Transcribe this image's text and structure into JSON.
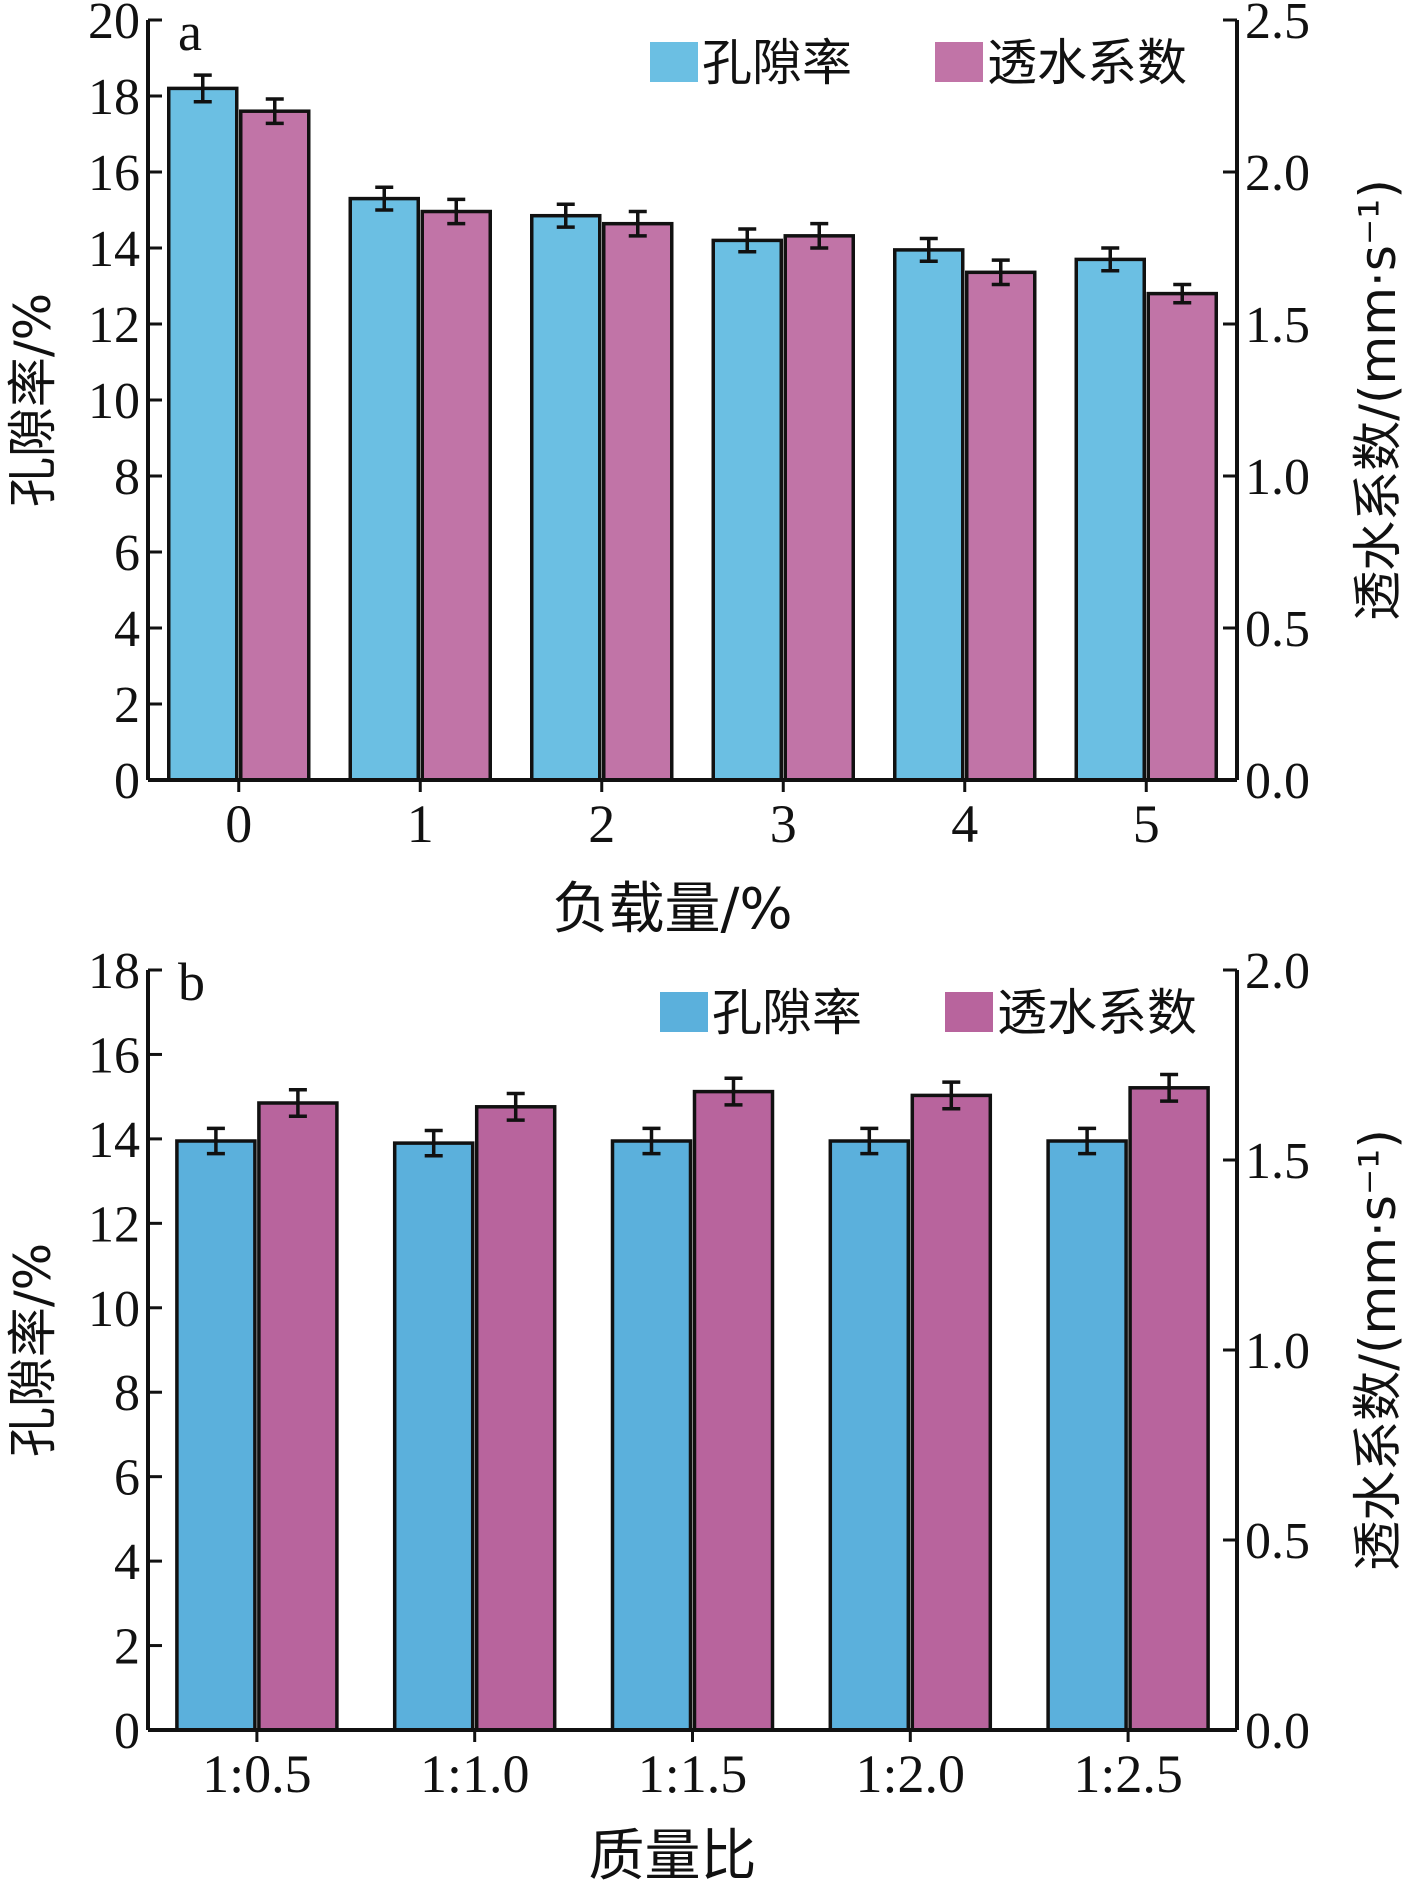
{
  "chart_data": [
    {
      "type": "bar",
      "panel_label": "a",
      "xlabel": "负载量/%",
      "ylabel": "孔隙率/%",
      "y2label": "透水系数/(mm·s⁻¹)",
      "categories": [
        "0",
        "1",
        "2",
        "3",
        "4",
        "5"
      ],
      "ylim": [
        0,
        20
      ],
      "y2lim": [
        0.0,
        2.5
      ],
      "yticks": [
        "0",
        "2",
        "4",
        "6",
        "8",
        "10",
        "12",
        "14",
        "16",
        "18",
        "20"
      ],
      "y2ticks": [
        "0.0",
        "0.5",
        "1.0",
        "1.5",
        "2.0",
        "2.5"
      ],
      "legend": [
        "孔隙率",
        "透水系数"
      ],
      "legend_position": "top-right",
      "series": [
        {
          "name": "孔隙率",
          "axis": "left",
          "color": "#6bbfe3",
          "values": [
            18.2,
            15.3,
            14.85,
            14.2,
            13.95,
            13.7
          ],
          "errors": [
            0.35,
            0.3,
            0.3,
            0.3,
            0.3,
            0.3
          ]
        },
        {
          "name": "透水系数",
          "axis": "right",
          "color": "#c174a7",
          "values": [
            2.2,
            1.87,
            1.83,
            1.79,
            1.67,
            1.6
          ],
          "errors": [
            0.04,
            0.04,
            0.04,
            0.04,
            0.04,
            0.03
          ]
        }
      ]
    },
    {
      "type": "bar",
      "panel_label": "b",
      "xlabel": "质量比",
      "ylabel": "孔隙率/%",
      "y2label": "透水系数/(mm·s⁻¹)",
      "categories": [
        "1:0.5",
        "1:1.0",
        "1:1.5",
        "1:2.0",
        "1:2.5"
      ],
      "ylim": [
        0,
        18
      ],
      "y2lim": [
        0.0,
        2.0
      ],
      "yticks": [
        "0",
        "2",
        "4",
        "6",
        "8",
        "10",
        "12",
        "14",
        "16",
        "18"
      ],
      "y2ticks": [
        "0.0",
        "0.5",
        "1.0",
        "1.5",
        "2.0"
      ],
      "legend": [
        "孔隙率",
        "透水系数"
      ],
      "legend_position": "top-right",
      "series": [
        {
          "name": "孔隙率",
          "axis": "left",
          "color": "#5bb0dc",
          "values": [
            13.95,
            13.9,
            13.95,
            13.95,
            13.95
          ],
          "errors": [
            0.3,
            0.3,
            0.3,
            0.3,
            0.3
          ]
        },
        {
          "name": "透水系数",
          "axis": "right",
          "color": "#b8649d",
          "values": [
            1.65,
            1.64,
            1.68,
            1.67,
            1.69
          ],
          "errors": [
            0.035,
            0.035,
            0.035,
            0.035,
            0.035
          ]
        }
      ]
    }
  ]
}
